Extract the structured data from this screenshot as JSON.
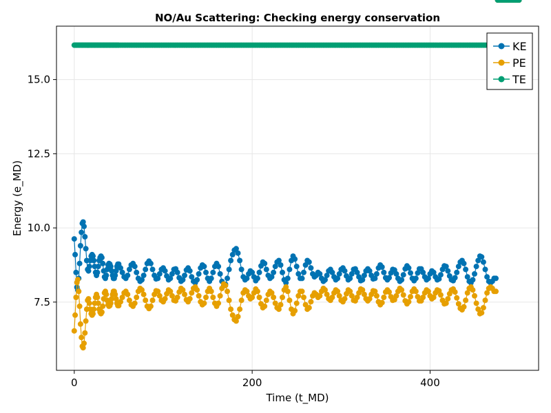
{
  "chart_data": {
    "type": "scatter",
    "title": "NO/Au Scattering: Checking energy conservation",
    "xlabel": "Time (t_MD)",
    "ylabel": "Energy (e_MD)",
    "xlim": [
      -20,
      522
    ],
    "ylim": [
      5.2,
      16.8
    ],
    "x_ticks": [
      0,
      200,
      400
    ],
    "x_tick_labels": [
      "0",
      "200",
      "400"
    ],
    "y_ticks": [
      7.5,
      10.0,
      12.5,
      15.0
    ],
    "y_tick_labels": [
      "7.5",
      "10.0",
      "12.5",
      "15.0"
    ],
    "grid": true,
    "legend_position": "top-right",
    "x": [
      0,
      1,
      2,
      3,
      4,
      5,
      6,
      7,
      8,
      9,
      10,
      11,
      12,
      13,
      14,
      15,
      16,
      17,
      18,
      19,
      20,
      21,
      22,
      23,
      24,
      25,
      26,
      27,
      28,
      29,
      30,
      31,
      32,
      33,
      34,
      35,
      36,
      37,
      38,
      39,
      40,
      41,
      42,
      43,
      44,
      45,
      46,
      47,
      48,
      49,
      50,
      52,
      54,
      56,
      58,
      60,
      62,
      64,
      66,
      68,
      70,
      72,
      74,
      76,
      78,
      80,
      82,
      84,
      86,
      88,
      90,
      92,
      94,
      96,
      98,
      100,
      102,
      104,
      106,
      108,
      110,
      112,
      114,
      116,
      118,
      120,
      122,
      124,
      126,
      128,
      130,
      132,
      134,
      136,
      138,
      140,
      142,
      144,
      146,
      148,
      150,
      152,
      154,
      156,
      158,
      160,
      162,
      164,
      166,
      168,
      170,
      172,
      174,
      176,
      178,
      180,
      182,
      184,
      186,
      188,
      190,
      192,
      194,
      196,
      198,
      200,
      202,
      204,
      206,
      208,
      210,
      212,
      214,
      216,
      218,
      220,
      222,
      224,
      226,
      228,
      230,
      232,
      234,
      236,
      238,
      240,
      242,
      244,
      246,
      248,
      250,
      252,
      254,
      256,
      258,
      260,
      262,
      264,
      266,
      268,
      270,
      272,
      274,
      276,
      278,
      280,
      282,
      284,
      286,
      288,
      290,
      292,
      294,
      296,
      298,
      300,
      302,
      304,
      306,
      308,
      310,
      312,
      314,
      316,
      318,
      320,
      322,
      324,
      326,
      328,
      330,
      332,
      334,
      336,
      338,
      340,
      342,
      344,
      346,
      348,
      350,
      352,
      354,
      356,
      358,
      360,
      362,
      364,
      366,
      368,
      370,
      372,
      374,
      376,
      378,
      380,
      382,
      384,
      386,
      388,
      390,
      392,
      394,
      396,
      398,
      400,
      402,
      404,
      406,
      408,
      410,
      412,
      414,
      416,
      418,
      420,
      422,
      424,
      426,
      428,
      430,
      432,
      434,
      436,
      438,
      440,
      442,
      444,
      446,
      448,
      450,
      452,
      454,
      456,
      458,
      460,
      462,
      464,
      466,
      468,
      470,
      472,
      474,
      476,
      478,
      480,
      482,
      484,
      486,
      488,
      490,
      492,
      494,
      496,
      498,
      500
    ],
    "series": [
      {
        "name": "KE",
        "color": "#0072b2",
        "values": [
          9.63,
          9.1,
          8.5,
          8.0,
          7.9,
          8.3,
          8.8,
          9.4,
          9.85,
          10.15,
          10.2,
          10.05,
          9.7,
          9.3,
          8.9,
          8.6,
          8.55,
          8.7,
          8.9,
          9.05,
          9.1,
          9.05,
          8.9,
          8.7,
          8.5,
          8.4,
          8.5,
          8.7,
          8.9,
          9.0,
          9.05,
          9.0,
          8.8,
          8.55,
          8.35,
          8.3,
          8.4,
          8.6,
          8.75,
          8.8,
          8.78,
          8.7,
          8.55,
          8.4,
          8.3,
          8.3,
          8.4,
          8.55,
          8.7,
          8.78,
          8.78,
          8.65,
          8.5,
          8.35,
          8.3,
          8.4,
          8.6,
          8.75,
          8.8,
          8.7,
          8.5,
          8.3,
          8.2,
          8.25,
          8.4,
          8.6,
          8.8,
          8.88,
          8.8,
          8.6,
          8.4,
          8.28,
          8.3,
          8.45,
          8.6,
          8.65,
          8.55,
          8.38,
          8.25,
          8.3,
          8.45,
          8.6,
          8.62,
          8.5,
          8.32,
          8.2,
          8.25,
          8.4,
          8.58,
          8.65,
          8.55,
          8.35,
          8.2,
          8.15,
          8.25,
          8.45,
          8.65,
          8.75,
          8.7,
          8.5,
          8.3,
          8.2,
          8.3,
          8.5,
          8.7,
          8.8,
          8.7,
          8.45,
          8.2,
          8.05,
          8.1,
          8.3,
          8.6,
          8.9,
          9.1,
          9.25,
          9.3,
          9.15,
          8.9,
          8.6,
          8.35,
          8.25,
          8.3,
          8.45,
          8.55,
          8.5,
          8.35,
          8.22,
          8.3,
          8.5,
          8.72,
          8.85,
          8.8,
          8.6,
          8.4,
          8.3,
          8.35,
          8.5,
          8.7,
          8.85,
          8.9,
          8.75,
          8.5,
          8.25,
          8.15,
          8.3,
          8.6,
          8.9,
          9.05,
          8.95,
          8.7,
          8.45,
          8.3,
          8.3,
          8.5,
          8.75,
          8.9,
          8.85,
          8.65,
          8.45,
          8.35,
          8.4,
          8.5,
          8.45,
          8.3,
          8.2,
          8.25,
          8.4,
          8.55,
          8.6,
          8.5,
          8.35,
          8.25,
          8.3,
          8.45,
          8.6,
          8.65,
          8.55,
          8.38,
          8.25,
          8.3,
          8.45,
          8.6,
          8.62,
          8.5,
          8.35,
          8.22,
          8.25,
          8.4,
          8.55,
          8.62,
          8.55,
          8.4,
          8.28,
          8.3,
          8.45,
          8.65,
          8.75,
          8.68,
          8.5,
          8.32,
          8.25,
          8.32,
          8.48,
          8.6,
          8.58,
          8.45,
          8.3,
          8.2,
          8.25,
          8.42,
          8.62,
          8.72,
          8.65,
          8.48,
          8.3,
          8.22,
          8.3,
          8.48,
          8.62,
          8.62,
          8.5,
          8.35,
          8.25,
          8.3,
          8.45,
          8.55,
          8.5,
          8.35,
          8.25,
          8.28,
          8.42,
          8.6,
          8.72,
          8.7,
          8.55,
          8.38,
          8.25,
          8.22,
          8.32,
          8.5,
          8.7,
          8.85,
          8.9,
          8.8,
          8.6,
          8.35,
          8.2,
          8.15,
          8.25,
          8.45,
          8.7,
          8.9,
          9.05,
          9.02,
          8.85,
          8.6,
          8.35,
          8.2,
          8.15,
          8.2,
          8.3,
          8.3
        ],
        "marker": "circle"
      },
      {
        "name": "PE",
        "color": "#e69f00",
        "values": [
          6.53,
          7.06,
          7.66,
          8.16,
          8.26,
          7.86,
          7.36,
          6.76,
          6.31,
          6.01,
          5.96,
          6.11,
          6.46,
          6.86,
          7.26,
          7.56,
          7.61,
          7.46,
          7.26,
          7.11,
          7.06,
          7.11,
          7.26,
          7.46,
          7.66,
          7.76,
          7.66,
          7.46,
          7.26,
          7.16,
          7.11,
          7.16,
          7.36,
          7.61,
          7.81,
          7.86,
          7.76,
          7.56,
          7.41,
          7.36,
          7.38,
          7.46,
          7.61,
          7.76,
          7.86,
          7.86,
          7.76,
          7.61,
          7.46,
          7.38,
          7.38,
          7.51,
          7.66,
          7.81,
          7.86,
          7.76,
          7.56,
          7.41,
          7.36,
          7.46,
          7.66,
          7.86,
          7.96,
          7.91,
          7.76,
          7.56,
          7.36,
          7.28,
          7.36,
          7.56,
          7.76,
          7.88,
          7.86,
          7.71,
          7.56,
          7.51,
          7.61,
          7.78,
          7.91,
          7.86,
          7.71,
          7.56,
          7.54,
          7.66,
          7.84,
          7.96,
          7.91,
          7.76,
          7.58,
          7.51,
          7.61,
          7.81,
          7.96,
          8.01,
          7.91,
          7.71,
          7.51,
          7.41,
          7.46,
          7.66,
          7.86,
          7.96,
          7.86,
          7.66,
          7.46,
          7.36,
          7.46,
          7.71,
          7.96,
          8.11,
          8.06,
          7.86,
          7.56,
          7.26,
          7.06,
          6.91,
          6.86,
          7.01,
          7.26,
          7.56,
          7.81,
          7.91,
          7.86,
          7.71,
          7.61,
          7.66,
          7.81,
          7.94,
          7.86,
          7.66,
          7.44,
          7.31,
          7.36,
          7.56,
          7.76,
          7.86,
          7.81,
          7.66,
          7.46,
          7.31,
          7.26,
          7.41,
          7.66,
          7.91,
          8.01,
          7.86,
          7.56,
          7.26,
          7.11,
          7.21,
          7.46,
          7.71,
          7.86,
          7.86,
          7.66,
          7.41,
          7.26,
          7.31,
          7.51,
          7.71,
          7.81,
          7.76,
          7.66,
          7.71,
          7.86,
          7.96,
          7.91,
          7.76,
          7.61,
          7.56,
          7.66,
          7.81,
          7.91,
          7.86,
          7.71,
          7.56,
          7.51,
          7.61,
          7.78,
          7.91,
          7.86,
          7.71,
          7.56,
          7.54,
          7.66,
          7.81,
          7.94,
          7.91,
          7.76,
          7.61,
          7.54,
          7.61,
          7.76,
          7.88,
          7.86,
          7.71,
          7.51,
          7.41,
          7.48,
          7.66,
          7.84,
          7.91,
          7.84,
          7.68,
          7.56,
          7.58,
          7.71,
          7.86,
          7.96,
          7.91,
          7.74,
          7.54,
          7.44,
          7.51,
          7.68,
          7.86,
          7.94,
          7.86,
          7.68,
          7.54,
          7.54,
          7.66,
          7.81,
          7.91,
          7.86,
          7.71,
          7.61,
          7.66,
          7.81,
          7.91,
          7.88,
          7.74,
          7.56,
          7.44,
          7.46,
          7.61,
          7.78,
          7.91,
          7.94,
          7.84,
          7.64,
          7.44,
          7.29,
          7.24,
          7.34,
          7.56,
          7.81,
          7.96,
          8.01,
          7.91,
          7.71,
          7.46,
          7.26,
          7.11,
          7.14,
          7.31,
          7.56,
          7.81,
          7.96,
          8.01,
          7.96,
          7.86,
          7.86
        ],
        "marker": "circle"
      },
      {
        "name": "TE",
        "color": "#009e73",
        "values": [
          16.16,
          16.16,
          16.16,
          16.16,
          16.16,
          16.16,
          16.16,
          16.16,
          16.16,
          16.16,
          16.16,
          16.16,
          16.16,
          16.16,
          16.16,
          16.16,
          16.16,
          16.16,
          16.16,
          16.16,
          16.16,
          16.16,
          16.16,
          16.16,
          16.16,
          16.16,
          16.16,
          16.16,
          16.16,
          16.16,
          16.16,
          16.16,
          16.16,
          16.16,
          16.16,
          16.16,
          16.16,
          16.16,
          16.16,
          16.16,
          16.16,
          16.16,
          16.16,
          16.16,
          16.16,
          16.16,
          16.16,
          16.16,
          16.16,
          16.16,
          16.16,
          16.16,
          16.16,
          16.16,
          16.16,
          16.16,
          16.16,
          16.16,
          16.16,
          16.16,
          16.16,
          16.16,
          16.16,
          16.16,
          16.16,
          16.16,
          16.16,
          16.16,
          16.16,
          16.16,
          16.16,
          16.16,
          16.16,
          16.16,
          16.16,
          16.16,
          16.16,
          16.16,
          16.16,
          16.16,
          16.16,
          16.16,
          16.16,
          16.16,
          16.16,
          16.16,
          16.16,
          16.16,
          16.16,
          16.16,
          16.16,
          16.16,
          16.16,
          16.16,
          16.16,
          16.16,
          16.16,
          16.16,
          16.16,
          16.16,
          16.16,
          16.16,
          16.16,
          16.16,
          16.16,
          16.16,
          16.16,
          16.16,
          16.16,
          16.16,
          16.16,
          16.16,
          16.16,
          16.16,
          16.16,
          16.16,
          16.16,
          16.16,
          16.16,
          16.16,
          16.16,
          16.16,
          16.16,
          16.16,
          16.16,
          16.16,
          16.16,
          16.16,
          16.16,
          16.16,
          16.16,
          16.16,
          16.16,
          16.16,
          16.16,
          16.16,
          16.16,
          16.16,
          16.16,
          16.16,
          16.16,
          16.16,
          16.16,
          16.16,
          16.16,
          16.16,
          16.16,
          16.16,
          16.16,
          16.16,
          16.16,
          16.16,
          16.16,
          16.16,
          16.16,
          16.16,
          16.16,
          16.16,
          16.16,
          16.16,
          16.16,
          16.16,
          16.16,
          16.16,
          16.16,
          16.16,
          16.16,
          16.16,
          16.16,
          16.16,
          16.16,
          16.16,
          16.16,
          16.16,
          16.16,
          16.16,
          16.16,
          16.16,
          16.16,
          16.16,
          16.16,
          16.16,
          16.16,
          16.16,
          16.16,
          16.16,
          16.16,
          16.16,
          16.16,
          16.16,
          16.16,
          16.16,
          16.16,
          16.16,
          16.16,
          16.16,
          16.16,
          16.16,
          16.16,
          16.16,
          16.16,
          16.16,
          16.16,
          16.16,
          16.16,
          16.16,
          16.16,
          16.16,
          16.16,
          16.16,
          16.16,
          16.16,
          16.16,
          16.16,
          16.16,
          16.16,
          16.16,
          16.16,
          16.16,
          16.16,
          16.16,
          16.16,
          16.16,
          16.16,
          16.16,
          16.16,
          16.16,
          16.16,
          16.16,
          16.16,
          16.16,
          16.16,
          16.16,
          16.16,
          16.16,
          16.16,
          16.16,
          16.16,
          16.16,
          16.16,
          16.16,
          16.16,
          16.16,
          16.16,
          16.16,
          16.16,
          16.16,
          16.16,
          16.16,
          16.16,
          16.16,
          16.16,
          16.16,
          16.16,
          16.16,
          16.16,
          16.16,
          16.16,
          16.16,
          16.16,
          16.16,
          16.16,
          16.16
        ],
        "marker": "circle"
      }
    ]
  }
}
